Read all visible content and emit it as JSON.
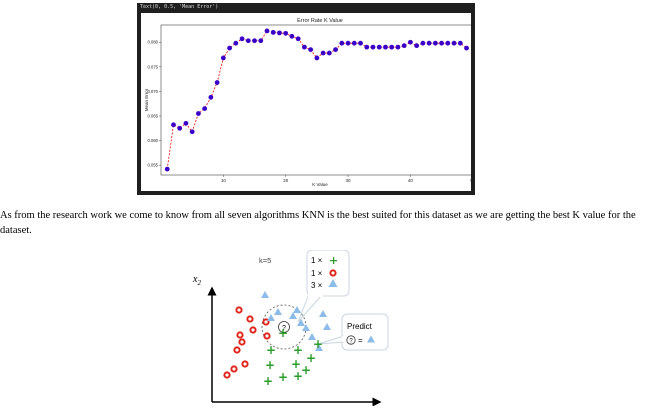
{
  "code_cell": {
    "text": "Text(0, 0.5, 'Mean Error')"
  },
  "chart_data": {
    "type": "line",
    "title": "Error Rate K Value",
    "xlabel": "K Value",
    "ylabel": "Mean Error",
    "xlim": [
      0,
      51
    ],
    "ylim": [
      0.053,
      0.0835
    ],
    "xticks": [
      "10",
      "20",
      "30",
      "40",
      "50"
    ],
    "yticks": [
      "0.055",
      "0.060",
      "0.065",
      "0.070",
      "0.075",
      "0.080"
    ],
    "line_color": "#ff0000",
    "line_style": "dashed",
    "marker_color": "#3a00c8",
    "series": [
      {
        "x": [
          1,
          2,
          3,
          4,
          5,
          6,
          7,
          8,
          9,
          10,
          11,
          12,
          13,
          14,
          15,
          16,
          17,
          18,
          19,
          20,
          21,
          22,
          23,
          24,
          25,
          26,
          27,
          28,
          29,
          30,
          31,
          32,
          33,
          34,
          35,
          36,
          37,
          38,
          39,
          40,
          41,
          42,
          43,
          44,
          45,
          46,
          47,
          48,
          49
        ],
        "values": [
          0.0542,
          0.0632,
          0.0625,
          0.0635,
          0.0618,
          0.0655,
          0.0665,
          0.0688,
          0.0718,
          0.0768,
          0.0788,
          0.0798,
          0.0807,
          0.0803,
          0.0803,
          0.0803,
          0.0823,
          0.082,
          0.0819,
          0.0818,
          0.0812,
          0.0807,
          0.079,
          0.0785,
          0.0768,
          0.0778,
          0.0778,
          0.0785,
          0.0798,
          0.0798,
          0.0798,
          0.0798,
          0.079,
          0.079,
          0.079,
          0.079,
          0.079,
          0.079,
          0.0793,
          0.08,
          0.0793,
          0.0798,
          0.0798,
          0.0798,
          0.0798,
          0.0798,
          0.0798,
          0.0798,
          0.0788
        ]
      }
    ]
  },
  "paragraph": {
    "text": "As from the research work we come to know from all seven algorithms  KNN is the best suited for this dataset as we are getting the best K value for the dataset."
  },
  "knn_diagram": {
    "k_label": "k=5",
    "axis_label": "x",
    "axis_sub": "2",
    "votes": [
      {
        "count": "1 ×",
        "symbol": "+",
        "color": "#2a9d2a"
      },
      {
        "count": "1 ×",
        "symbol": "o",
        "color": "#e0241b"
      },
      {
        "count": "3 ×",
        "symbol": "triangle",
        "color": "#7ab3e6"
      }
    ],
    "predict_label": "Predict",
    "query_symbol": "?",
    "equals": "=",
    "colors": {
      "plus": "#2a9d2a",
      "circle": "#e0241b",
      "triangle": "#8cbce8"
    }
  }
}
